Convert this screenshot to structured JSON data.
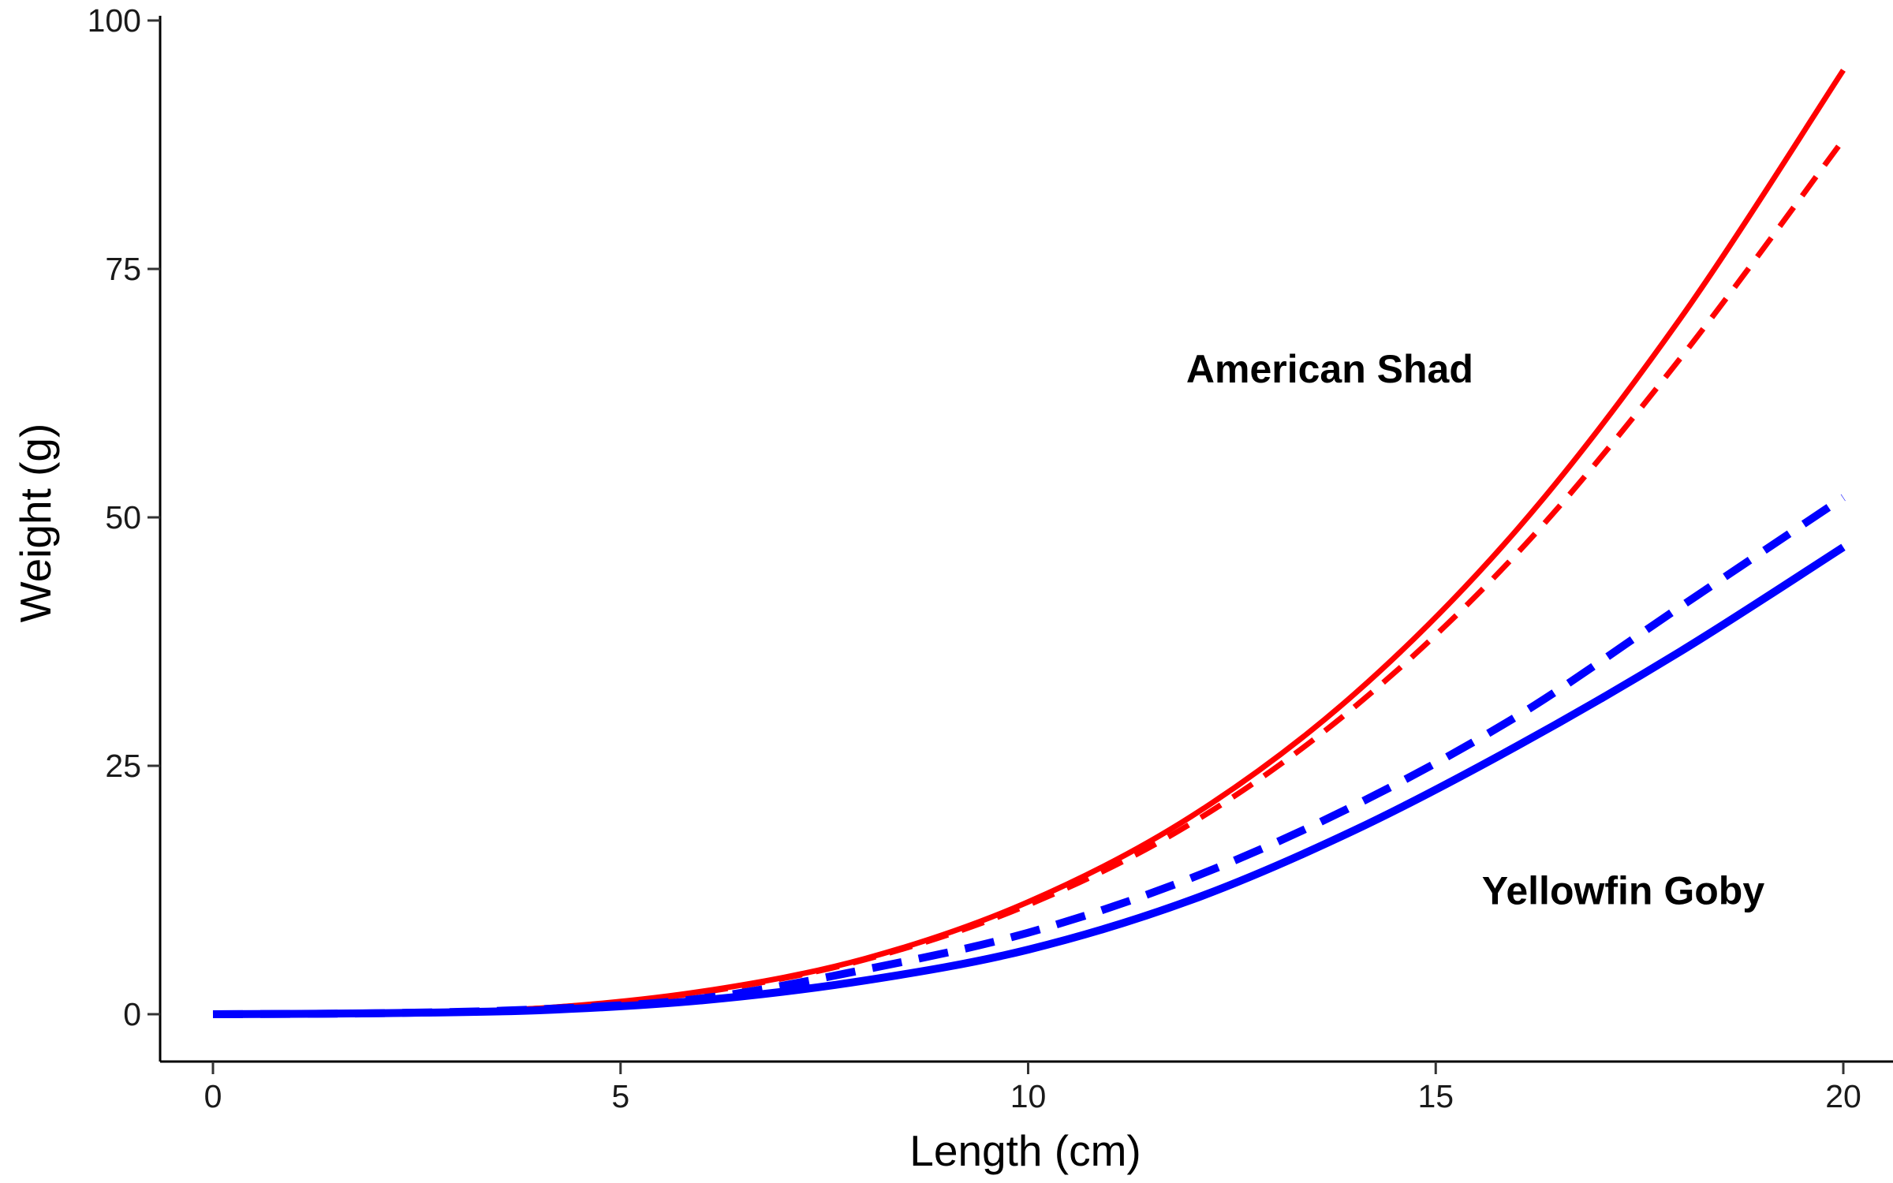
{
  "chart_data": {
    "type": "line",
    "title": "",
    "xlabel": "Length (cm)",
    "ylabel": "Weight (g)",
    "xlim": [
      -0.6,
      20.6
    ],
    "ylim": [
      -5,
      100
    ],
    "x_ticks": [
      0,
      5,
      10,
      15,
      20
    ],
    "y_ticks": [
      0,
      25,
      50,
      75,
      100
    ],
    "grid": false,
    "legend": "none",
    "x": [
      0,
      2,
      4,
      6,
      8,
      10,
      12,
      14,
      16,
      18,
      20
    ],
    "series": [
      {
        "species": "American Shad",
        "style": "solid",
        "color": "#ff0000",
        "values": [
          0,
          0.1,
          0.6,
          2.3,
          5.6,
          11.3,
          19.9,
          32.2,
          48.8,
          70.0,
          95.0
        ]
      },
      {
        "species": "American Shad",
        "style": "dashed",
        "color": "#ff0000",
        "values": [
          0,
          0.1,
          0.6,
          2.2,
          5.5,
          11.0,
          19.2,
          30.9,
          46.4,
          66.0,
          88.0
        ]
      },
      {
        "species": "Yellowfin Goby",
        "style": "dashed",
        "color": "#0000ff",
        "values": [
          0,
          0.1,
          0.5,
          1.6,
          4.5,
          8.2,
          13.7,
          21.0,
          30.0,
          41.0,
          52.0
        ]
      },
      {
        "species": "Yellowfin Goby",
        "style": "solid",
        "color": "#0000ff",
        "values": [
          0,
          0.1,
          0.4,
          1.4,
          3.4,
          6.5,
          11.5,
          18.5,
          27.0,
          36.5,
          47.0
        ]
      }
    ],
    "annotations": [
      {
        "text": "American Shad",
        "x": 13.7,
        "y": 65
      },
      {
        "text": "Yellowfin Goby",
        "x": 17.3,
        "y": 12.5
      }
    ]
  }
}
